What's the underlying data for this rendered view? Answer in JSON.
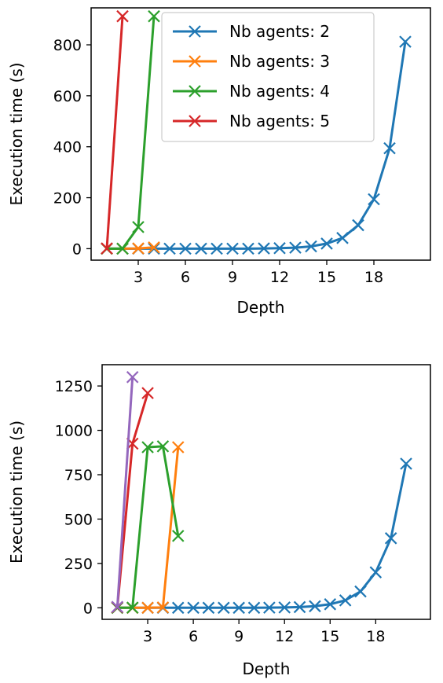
{
  "chart_data": [
    {
      "type": "line",
      "xlabel": "Depth",
      "ylabel": "Execution time (s)",
      "xlim": [
        0.0,
        21.6
      ],
      "ylim": [
        -45,
        945
      ],
      "xticks": [
        3,
        6,
        9,
        12,
        15,
        18
      ],
      "yticks": [
        0,
        200,
        400,
        600,
        800
      ],
      "grid": false,
      "legend": "top-center",
      "series": [
        {
          "name": "Nb agents: 2",
          "color": "#1f77b4",
          "x": [
            1,
            2,
            3,
            4,
            5,
            6,
            7,
            8,
            9,
            10,
            11,
            12,
            13,
            14,
            15,
            16,
            17,
            18,
            19,
            20
          ],
          "y": [
            0,
            0,
            0,
            0,
            0,
            0,
            0,
            0,
            0,
            0,
            1,
            2,
            4,
            9,
            20,
            42,
            92,
            194,
            394,
            812
          ]
        },
        {
          "name": "Nb agents: 3",
          "color": "#ff7f0e",
          "x": [
            1,
            2,
            3,
            4
          ],
          "y": [
            0,
            0,
            1,
            5
          ]
        },
        {
          "name": "Nb agents: 4",
          "color": "#2ca02c",
          "x": [
            1,
            2,
            3,
            4
          ],
          "y": [
            0,
            0,
            85,
            912
          ]
        },
        {
          "name": "Nb agents: 5",
          "color": "#d62728",
          "x": [
            1,
            2
          ],
          "y": [
            1,
            912
          ]
        }
      ]
    },
    {
      "type": "line",
      "xlabel": "Depth",
      "ylabel": "Execution time (s)",
      "xlim": [
        0.0,
        21.6
      ],
      "ylim": [
        -65,
        1370
      ],
      "xticks": [
        3,
        6,
        9,
        12,
        15,
        18
      ],
      "yticks": [
        0,
        250,
        500,
        750,
        1000,
        1250
      ],
      "grid": false,
      "legend": "none",
      "series": [
        {
          "color": "#1f77b4",
          "x": [
            1,
            2,
            3,
            4,
            5,
            6,
            7,
            8,
            9,
            10,
            11,
            12,
            13,
            14,
            15,
            16,
            17,
            18,
            19,
            20
          ],
          "y": [
            0,
            0,
            0,
            0,
            0,
            0,
            0,
            0,
            0,
            0,
            1,
            2,
            4,
            9,
            20,
            42,
            92,
            200,
            392,
            812
          ]
        },
        {
          "color": "#ff7f0e",
          "x": [
            1,
            2,
            3,
            4,
            5
          ],
          "y": [
            0,
            0,
            0,
            2,
            905
          ]
        },
        {
          "color": "#2ca02c",
          "x": [
            1,
            2,
            3,
            4,
            5
          ],
          "y": [
            0,
            1,
            905,
            910,
            405
          ]
        },
        {
          "color": "#d62728",
          "x": [
            1,
            2,
            3
          ],
          "y": [
            3,
            925,
            1210
          ]
        },
        {
          "color": "#9467bd",
          "x": [
            1,
            2
          ],
          "y": [
            5,
            1300
          ]
        }
      ]
    }
  ]
}
